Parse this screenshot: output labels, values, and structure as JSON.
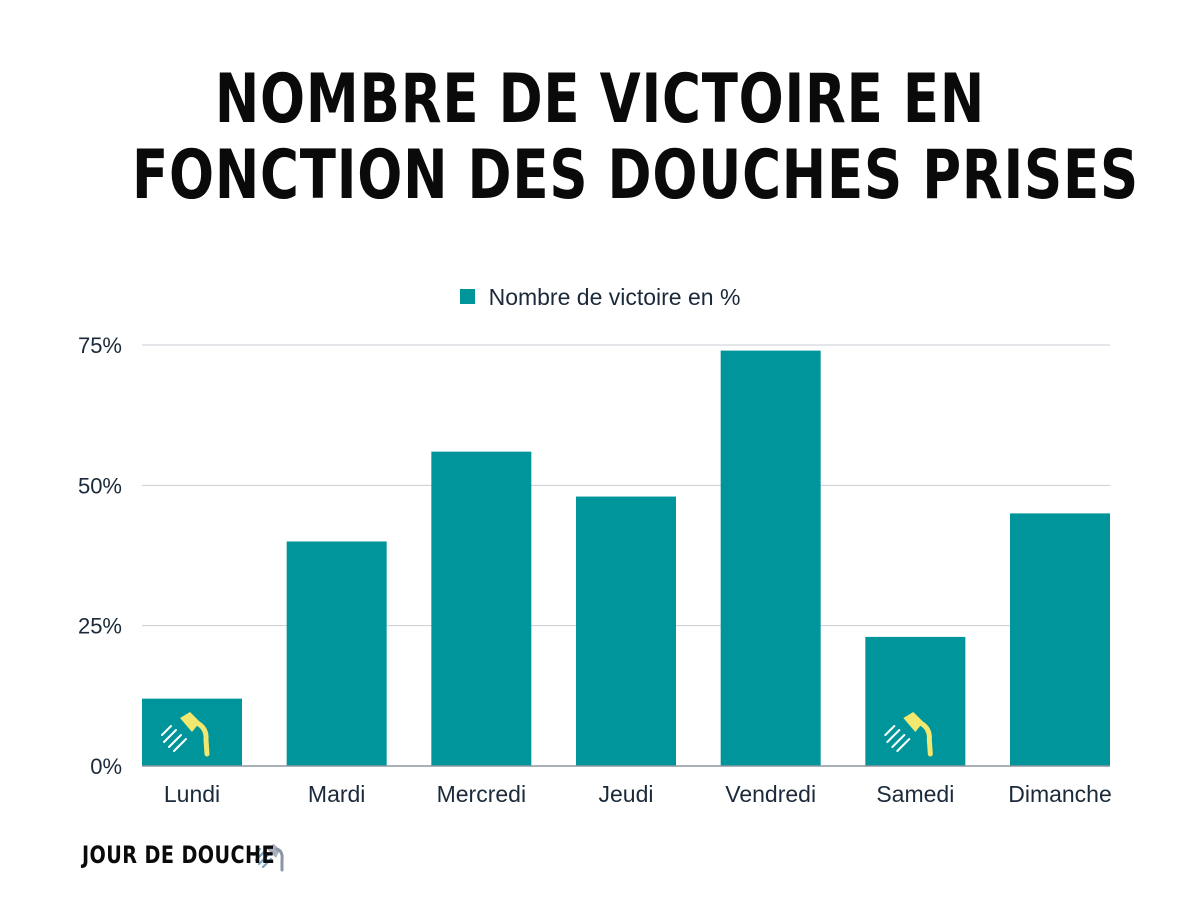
{
  "title": {
    "line1": "NOMBRE DE VICTOIRE EN",
    "line2": "FONCTION DES DOUCHES PRISES"
  },
  "footer": {
    "brand": "JOUR DE DOUCHE",
    "icon": "shower-head-icon"
  },
  "colors": {
    "bar": "#00959a",
    "grid": "#c9ced3",
    "text": "#1b2a3a",
    "shower_icon": "#f2e870"
  },
  "chart_data": {
    "type": "bar",
    "title": "NOMBRE DE VICTOIRE EN FONCTION DES DOUCHES PRISES",
    "categories": [
      "Lundi",
      "Mardi",
      "Mercredi",
      "Jeudi",
      "Vendredi",
      "Samedi",
      "Dimanche"
    ],
    "series": [
      {
        "name": "Nombre de victoire en %",
        "values": [
          12,
          40,
          56,
          48,
          74,
          23,
          45
        ]
      }
    ],
    "y_ticks": [
      "0%",
      "25%",
      "50%",
      "75%"
    ],
    "y_tick_values": [
      0,
      25,
      50,
      75
    ],
    "ylim": [
      0,
      75
    ],
    "grid": true,
    "legend": "top-center",
    "shower_icon_categories": [
      "Lundi",
      "Samedi"
    ]
  }
}
